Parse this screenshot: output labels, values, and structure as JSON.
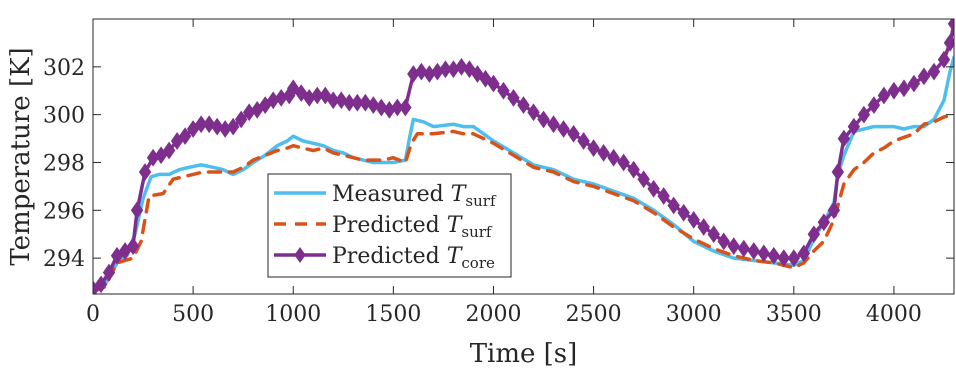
{
  "chart_data": {
    "type": "line",
    "xlabel": "Time [s]",
    "ylabel": "Temperature [K]",
    "xlim": [
      0,
      4300
    ],
    "ylim": [
      292.5,
      304
    ],
    "xticks": [
      0,
      500,
      1000,
      1500,
      2000,
      2500,
      3000,
      3500,
      4000
    ],
    "yticks": [
      294,
      296,
      298,
      300,
      302
    ],
    "grid": false,
    "legend_position": "lower-left-center",
    "series": [
      {
        "name": "Measured T_surf",
        "legend_prefix": "Measured",
        "legend_symbol": "T",
        "legend_subscript": "surf",
        "color": "#4dbeee",
        "style": "solid",
        "marker": "none",
        "points": [
          [
            0,
            292.6
          ],
          [
            60,
            292.9
          ],
          [
            120,
            293.8
          ],
          [
            170,
            294.1
          ],
          [
            210,
            295.0
          ],
          [
            250,
            296.5
          ],
          [
            290,
            297.4
          ],
          [
            330,
            297.5
          ],
          [
            380,
            297.5
          ],
          [
            430,
            297.7
          ],
          [
            480,
            297.8
          ],
          [
            540,
            297.9
          ],
          [
            600,
            297.8
          ],
          [
            650,
            297.7
          ],
          [
            700,
            297.5
          ],
          [
            750,
            297.7
          ],
          [
            800,
            298.0
          ],
          [
            860,
            298.3
          ],
          [
            920,
            298.7
          ],
          [
            970,
            298.9
          ],
          [
            1000,
            299.1
          ],
          [
            1050,
            298.9
          ],
          [
            1100,
            298.8
          ],
          [
            1150,
            298.7
          ],
          [
            1200,
            298.5
          ],
          [
            1250,
            298.4
          ],
          [
            1300,
            298.2
          ],
          [
            1350,
            298.1
          ],
          [
            1400,
            298.0
          ],
          [
            1450,
            298.0
          ],
          [
            1500,
            298.0
          ],
          [
            1560,
            298.1
          ],
          [
            1580,
            299.0
          ],
          [
            1600,
            299.8
          ],
          [
            1650,
            299.7
          ],
          [
            1700,
            299.5
          ],
          [
            1800,
            299.6
          ],
          [
            1850,
            299.5
          ],
          [
            1900,
            299.5
          ],
          [
            1950,
            299.2
          ],
          [
            2000,
            298.9
          ],
          [
            2100,
            298.4
          ],
          [
            2200,
            297.9
          ],
          [
            2300,
            297.7
          ],
          [
            2400,
            297.3
          ],
          [
            2500,
            297.1
          ],
          [
            2600,
            296.8
          ],
          [
            2700,
            296.5
          ],
          [
            2800,
            296.0
          ],
          [
            2900,
            295.4
          ],
          [
            3000,
            294.7
          ],
          [
            3100,
            294.3
          ],
          [
            3200,
            294.0
          ],
          [
            3300,
            293.9
          ],
          [
            3400,
            293.8
          ],
          [
            3500,
            293.7
          ],
          [
            3550,
            293.9
          ],
          [
            3600,
            294.8
          ],
          [
            3650,
            295.5
          ],
          [
            3700,
            296.3
          ],
          [
            3720,
            297.5
          ],
          [
            3750,
            298.3
          ],
          [
            3800,
            299.3
          ],
          [
            3850,
            299.4
          ],
          [
            3900,
            299.5
          ],
          [
            3950,
            299.5
          ],
          [
            4000,
            299.5
          ],
          [
            4050,
            299.4
          ],
          [
            4100,
            299.5
          ],
          [
            4150,
            299.5
          ],
          [
            4200,
            299.8
          ],
          [
            4250,
            300.6
          ],
          [
            4280,
            301.8
          ],
          [
            4300,
            302.4
          ]
        ]
      },
      {
        "name": "Predicted T_surf",
        "legend_prefix": "Predicted",
        "legend_symbol": "T",
        "legend_subscript": "surf",
        "color": "#d95319",
        "style": "dashed",
        "marker": "none",
        "points": [
          [
            0,
            292.6
          ],
          [
            60,
            292.8
          ],
          [
            120,
            293.8
          ],
          [
            200,
            294.0
          ],
          [
            240,
            294.7
          ],
          [
            280,
            296.6
          ],
          [
            350,
            296.7
          ],
          [
            400,
            297.3
          ],
          [
            450,
            297.4
          ],
          [
            500,
            297.5
          ],
          [
            550,
            297.6
          ],
          [
            600,
            297.6
          ],
          [
            650,
            297.6
          ],
          [
            700,
            297.6
          ],
          [
            750,
            297.8
          ],
          [
            800,
            298.1
          ],
          [
            860,
            298.3
          ],
          [
            920,
            298.5
          ],
          [
            970,
            298.6
          ],
          [
            1000,
            298.7
          ],
          [
            1050,
            298.6
          ],
          [
            1100,
            298.5
          ],
          [
            1150,
            298.6
          ],
          [
            1200,
            298.4
          ],
          [
            1250,
            298.3
          ],
          [
            1300,
            298.2
          ],
          [
            1350,
            298.1
          ],
          [
            1400,
            298.1
          ],
          [
            1450,
            298.1
          ],
          [
            1500,
            298.2
          ],
          [
            1560,
            298.0
          ],
          [
            1590,
            298.8
          ],
          [
            1620,
            299.2
          ],
          [
            1700,
            299.2
          ],
          [
            1800,
            299.3
          ],
          [
            1850,
            299.2
          ],
          [
            1900,
            299.2
          ],
          [
            1950,
            299.0
          ],
          [
            2000,
            298.8
          ],
          [
            2100,
            298.3
          ],
          [
            2200,
            297.8
          ],
          [
            2300,
            297.6
          ],
          [
            2400,
            297.2
          ],
          [
            2500,
            297.0
          ],
          [
            2600,
            296.7
          ],
          [
            2700,
            296.4
          ],
          [
            2800,
            295.9
          ],
          [
            2900,
            295.3
          ],
          [
            3000,
            294.8
          ],
          [
            3100,
            294.4
          ],
          [
            3200,
            294.1
          ],
          [
            3300,
            293.9
          ],
          [
            3400,
            293.8
          ],
          [
            3500,
            293.6
          ],
          [
            3550,
            293.8
          ],
          [
            3600,
            294.3
          ],
          [
            3650,
            294.7
          ],
          [
            3700,
            295.6
          ],
          [
            3750,
            297.1
          ],
          [
            3800,
            297.7
          ],
          [
            3850,
            298.0
          ],
          [
            3900,
            298.4
          ],
          [
            3950,
            298.6
          ],
          [
            4000,
            298.9
          ],
          [
            4100,
            299.2
          ],
          [
            4150,
            299.6
          ],
          [
            4200,
            299.7
          ],
          [
            4250,
            299.9
          ],
          [
            4300,
            300.0
          ]
        ]
      },
      {
        "name": "Predicted T_core",
        "legend_prefix": "Predicted",
        "legend_symbol": "T",
        "legend_subscript": "core",
        "color": "#7e2f8e",
        "style": "solid",
        "marker": "diamond",
        "points": [
          [
            0,
            292.7
          ],
          [
            40,
            292.9
          ],
          [
            80,
            293.4
          ],
          [
            120,
            294.1
          ],
          [
            160,
            294.3
          ],
          [
            200,
            294.5
          ],
          [
            220,
            296.0
          ],
          [
            260,
            297.6
          ],
          [
            300,
            298.2
          ],
          [
            340,
            298.3
          ],
          [
            380,
            298.5
          ],
          [
            420,
            298.9
          ],
          [
            460,
            299.1
          ],
          [
            500,
            299.4
          ],
          [
            540,
            299.6
          ],
          [
            580,
            299.6
          ],
          [
            620,
            299.5
          ],
          [
            660,
            299.4
          ],
          [
            700,
            299.5
          ],
          [
            740,
            299.8
          ],
          [
            780,
            300.1
          ],
          [
            820,
            300.2
          ],
          [
            860,
            300.4
          ],
          [
            900,
            300.6
          ],
          [
            940,
            300.7
          ],
          [
            980,
            300.8
          ],
          [
            1000,
            301.1
          ],
          [
            1040,
            300.9
          ],
          [
            1080,
            300.7
          ],
          [
            1120,
            300.8
          ],
          [
            1160,
            300.8
          ],
          [
            1200,
            300.6
          ],
          [
            1240,
            300.6
          ],
          [
            1280,
            300.5
          ],
          [
            1320,
            300.5
          ],
          [
            1360,
            300.5
          ],
          [
            1400,
            300.4
          ],
          [
            1440,
            300.3
          ],
          [
            1480,
            300.2
          ],
          [
            1520,
            300.3
          ],
          [
            1560,
            300.3
          ],
          [
            1600,
            301.7
          ],
          [
            1640,
            301.8
          ],
          [
            1680,
            301.7
          ],
          [
            1720,
            301.8
          ],
          [
            1760,
            301.9
          ],
          [
            1800,
            301.9
          ],
          [
            1840,
            302.0
          ],
          [
            1880,
            301.9
          ],
          [
            1920,
            301.7
          ],
          [
            1960,
            301.5
          ],
          [
            2000,
            301.3
          ],
          [
            2050,
            301.0
          ],
          [
            2100,
            300.7
          ],
          [
            2150,
            300.4
          ],
          [
            2200,
            300.1
          ],
          [
            2250,
            299.8
          ],
          [
            2300,
            299.6
          ],
          [
            2350,
            299.4
          ],
          [
            2400,
            299.2
          ],
          [
            2450,
            298.9
          ],
          [
            2500,
            298.6
          ],
          [
            2550,
            298.4
          ],
          [
            2600,
            298.2
          ],
          [
            2650,
            298.0
          ],
          [
            2700,
            297.7
          ],
          [
            2750,
            297.3
          ],
          [
            2800,
            296.9
          ],
          [
            2850,
            296.6
          ],
          [
            2900,
            296.2
          ],
          [
            2950,
            295.9
          ],
          [
            3000,
            295.6
          ],
          [
            3050,
            295.3
          ],
          [
            3100,
            295.0
          ],
          [
            3150,
            294.7
          ],
          [
            3200,
            294.5
          ],
          [
            3250,
            294.4
          ],
          [
            3300,
            294.3
          ],
          [
            3350,
            294.2
          ],
          [
            3400,
            294.1
          ],
          [
            3450,
            294.0
          ],
          [
            3500,
            294.0
          ],
          [
            3550,
            294.2
          ],
          [
            3600,
            295.0
          ],
          [
            3650,
            295.5
          ],
          [
            3700,
            296.0
          ],
          [
            3720,
            297.6
          ],
          [
            3750,
            299.0
          ],
          [
            3800,
            299.5
          ],
          [
            3850,
            300.0
          ],
          [
            3900,
            300.4
          ],
          [
            3950,
            300.8
          ],
          [
            4000,
            301.0
          ],
          [
            4050,
            301.1
          ],
          [
            4100,
            301.3
          ],
          [
            4150,
            301.6
          ],
          [
            4200,
            301.8
          ],
          [
            4250,
            302.3
          ],
          [
            4280,
            303.0
          ],
          [
            4300,
            303.8
          ]
        ]
      }
    ]
  }
}
